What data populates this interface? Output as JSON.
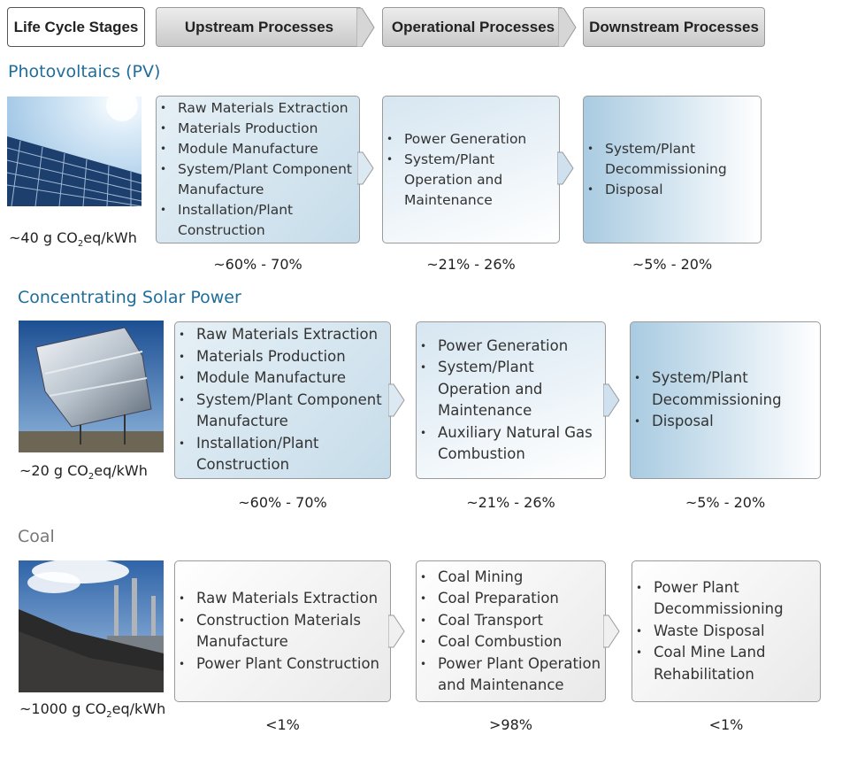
{
  "header": {
    "stages_label": "Life Cycle Stages",
    "upstream_label": "Upstream Processes",
    "operational_label": "Operational Processes",
    "downstream_label": "Downstream  Processes"
  },
  "pv": {
    "title": "Photovoltaics (PV)",
    "emissions_prefix": "~40 g CO",
    "emissions_sub": "2",
    "emissions_suffix": "eq/kWh",
    "upstream": [
      "Raw Materials Extraction",
      "Materials Production",
      "Module Manufacture",
      "System/Plant Component Manufacture",
      "Installation/Plant Construction"
    ],
    "operational": [
      "Power Generation",
      "System/Plant Operation and Maintenance"
    ],
    "downstream": [
      "System/Plant Decommissioning",
      "Disposal"
    ],
    "upstream_pct": "~60% - 70%",
    "operational_pct": "~21% - 26%",
    "downstream_pct": "~5% - 20%"
  },
  "csp": {
    "title": "Concentrating Solar Power",
    "emissions_prefix": "~20 g CO",
    "emissions_sub": "2",
    "emissions_suffix": "eq/kWh",
    "upstream": [
      "Raw Materials Extraction",
      "Materials Production",
      "Module Manufacture",
      "System/Plant Component Manufacture",
      "Installation/Plant Construction"
    ],
    "operational": [
      "Power Generation",
      "System/Plant Operation and Maintenance",
      "Auxiliary Natural Gas Combustion"
    ],
    "downstream": [
      "System/Plant Decommissioning",
      "Disposal"
    ],
    "upstream_pct": "~60% - 70%",
    "operational_pct": "~21% - 26%",
    "downstream_pct": "~5% - 20%"
  },
  "coal": {
    "title": "Coal",
    "emissions_prefix": "~1000 g CO",
    "emissions_sub": "2",
    "emissions_suffix": "eq/kWh",
    "upstream": [
      "Raw Materials Extraction",
      "Construction Materials Manufacture",
      "Power Plant Construction"
    ],
    "operational": [
      "Coal Mining",
      "Coal Preparation",
      "Coal Transport",
      "Coal Combustion",
      "Power Plant Operation and Maintenance"
    ],
    "downstream": [
      "Power Plant Decommissioning",
      "Waste Disposal",
      "Coal Mine Land Rehabilitation"
    ],
    "upstream_pct": "<1%",
    "operational_pct": ">98%",
    "downstream_pct": "<1%"
  },
  "colors": {
    "title_blue": "#1f6d9b",
    "title_gray": "#777777",
    "box_border": "#9a9a9a"
  }
}
